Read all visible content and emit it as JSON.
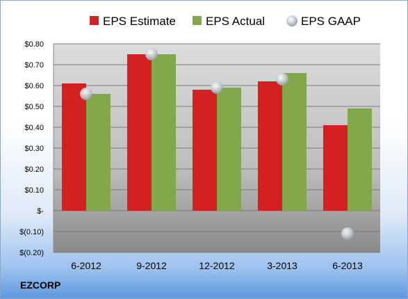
{
  "chart_data": {
    "type": "bar",
    "categories": [
      "6-2012",
      "9-2012",
      "12-2012",
      "3-2013",
      "6-2013"
    ],
    "series": [
      {
        "name": "EPS Estimate",
        "values": [
          0.61,
          0.75,
          0.58,
          0.62,
          0.41
        ],
        "color": "#d42020"
      },
      {
        "name": "EPS Actual",
        "values": [
          0.56,
          0.75,
          0.59,
          0.66,
          0.49
        ],
        "color": "#82a84a"
      },
      {
        "name": "EPS GAAP",
        "type": "scatter",
        "values": [
          0.56,
          0.75,
          0.59,
          0.63,
          -0.11
        ],
        "color": "#b8bcc4"
      }
    ],
    "ylim": [
      -0.2,
      0.8
    ],
    "yticks": [
      0.8,
      0.7,
      0.6,
      0.5,
      0.4,
      0.3,
      0.2,
      0.1,
      0,
      -0.1,
      -0.2
    ],
    "ytick_labels": [
      "$0.80",
      "$0.70",
      "$0.60",
      "$0.50",
      "$0.40",
      "$0.30",
      "$0.20",
      "$0.10",
      "$-",
      "$(0.10)",
      "$(0.20)"
    ],
    "grid": true,
    "legend_position": "top",
    "title": "",
    "xlabel": "",
    "ylabel": ""
  },
  "brand": "EZCORP"
}
